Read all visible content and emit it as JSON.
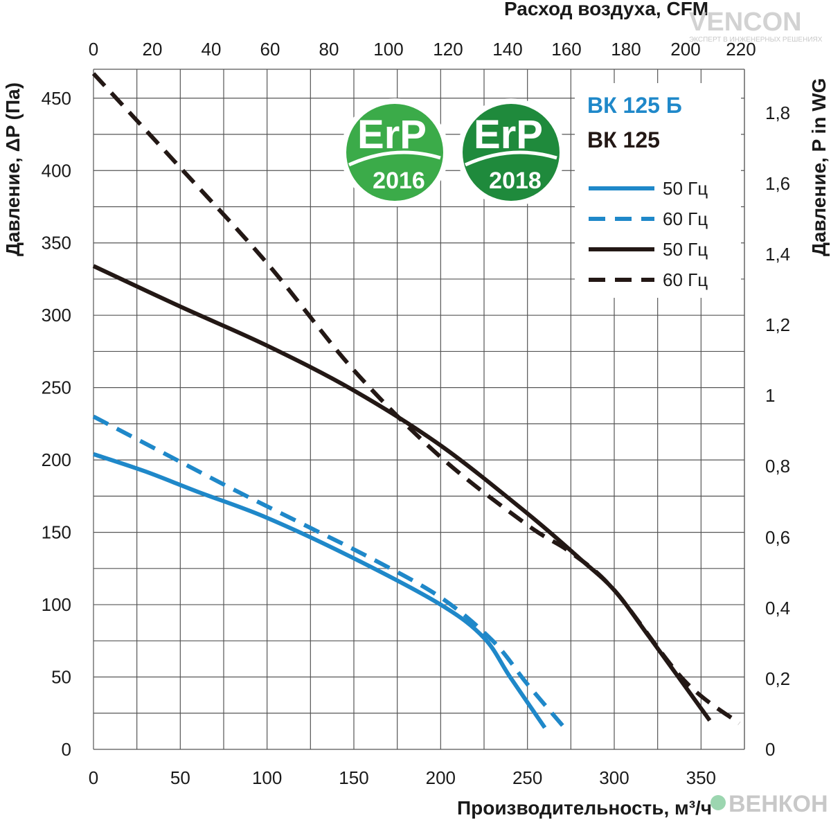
{
  "colors": {
    "blue": "#1f88c9",
    "black": "#231815",
    "grid": "#555555",
    "badge_2016": "#3bab49",
    "badge_2018": "#1f8a3c",
    "watermark": "#c8c8c8"
  },
  "watermark_top": {
    "brand": "VENCON",
    "tagline": "ЭКСПЕРТ В ИНЖЕНЕРНЫХ РЕШЕНИЯХ"
  },
  "watermark_bottom": {
    "brand": "ВЕНКОН"
  },
  "badges": [
    {
      "text": "ErP",
      "year": "2016"
    },
    {
      "text": "ErP",
      "year": "2018"
    }
  ],
  "chart_data": {
    "type": "line",
    "model_titles": [
      {
        "text": "ВК 125 Б",
        "color": "#1f88c9"
      },
      {
        "text": "ВК 125",
        "color": "#231815"
      }
    ],
    "xlabel": "Производительность, м³/ч",
    "x_top_label": "Расход воздуха, CFM",
    "ylabel": "Давление, ΔP (Па)",
    "y_right_label": "Давление,  P in WG",
    "xlim": [
      0,
      375
    ],
    "ylim": [
      0,
      470
    ],
    "x_ticks": [
      0,
      50,
      100,
      150,
      200,
      250,
      300,
      350
    ],
    "y_ticks": [
      0,
      50,
      100,
      150,
      200,
      250,
      300,
      350,
      400,
      450
    ],
    "x_top_ticks": [
      "0",
      "20",
      "40",
      "60",
      "80",
      "100",
      "120",
      "140",
      "160",
      "180",
      "200",
      "220"
    ],
    "y_right_ticks": [
      "0",
      "0,2",
      "0,4",
      "0,6",
      "0,8",
      "1",
      "1,2",
      "1,4",
      "1,6",
      "1,8"
    ],
    "grid": true,
    "legend_position": "top-right",
    "series": [
      {
        "name": "50 Гц",
        "model": "ВК 125 Б",
        "color": "#1f88c9",
        "dash": false,
        "points": [
          [
            0,
            204
          ],
          [
            30,
            192
          ],
          [
            60,
            178
          ],
          [
            100,
            160
          ],
          [
            150,
            132
          ],
          [
            200,
            100
          ],
          [
            225,
            77
          ],
          [
            240,
            50
          ],
          [
            260,
            15
          ]
        ]
      },
      {
        "name": "60 Гц",
        "model": "ВК 125 Б",
        "color": "#1f88c9",
        "dash": true,
        "points": [
          [
            0,
            230
          ],
          [
            40,
            205
          ],
          [
            80,
            180
          ],
          [
            120,
            156
          ],
          [
            160,
            132
          ],
          [
            200,
            105
          ],
          [
            230,
            75
          ],
          [
            250,
            45
          ],
          [
            272,
            14
          ]
        ]
      },
      {
        "name": "50 Гц",
        "model": "ВК 125",
        "color": "#231815",
        "dash": false,
        "points": [
          [
            0,
            334
          ],
          [
            50,
            306
          ],
          [
            100,
            279
          ],
          [
            150,
            248
          ],
          [
            200,
            210
          ],
          [
            250,
            163
          ],
          [
            280,
            132
          ],
          [
            300,
            110
          ],
          [
            320,
            78
          ],
          [
            355,
            20
          ]
        ]
      },
      {
        "name": "60 Гц",
        "model": "ВК 125",
        "color": "#231815",
        "dash": true,
        "points": [
          [
            0,
            467
          ],
          [
            50,
            402
          ],
          [
            100,
            336
          ],
          [
            150,
            262
          ],
          [
            200,
            202
          ],
          [
            250,
            155
          ],
          [
            275,
            136
          ],
          [
            300,
            110
          ],
          [
            340,
            48
          ],
          [
            372,
            18
          ]
        ]
      }
    ]
  }
}
